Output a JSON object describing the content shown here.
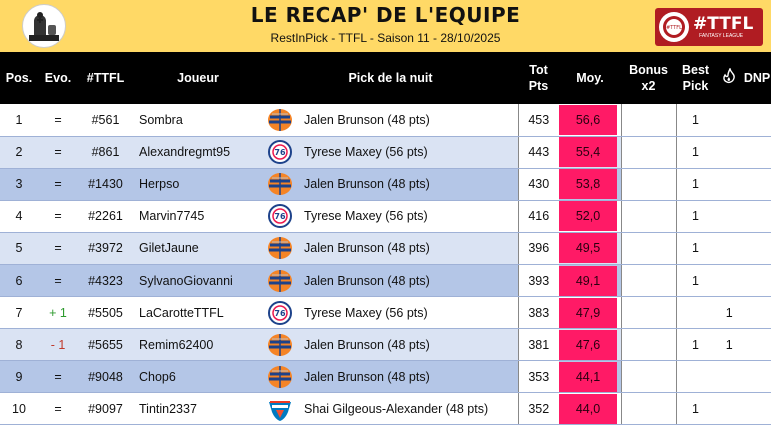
{
  "header": {
    "title": "LE RECAP' DE L'EQUIPE",
    "subtitle": "RestInPick - TTFL - Saison 11 - 28/10/2025",
    "logo_right_text": "#TTFL",
    "logo_right_sub": "FANTASY LEAGUE",
    "logo_right_badge": "#TTFL"
  },
  "columns": {
    "pos": "Pos.",
    "evo": "Evo.",
    "ttfl": "#TTFL",
    "joueur": "Joueur",
    "pick": "Pick de la nuit",
    "tot_line1": "Tot",
    "tot_line2": "Pts",
    "moy": "Moy.",
    "bonus_line1": "Bonus",
    "bonus_line2": "x2",
    "best_line1": "Best",
    "best_line2": "Pick",
    "fire_icon": "flame-icon",
    "dnp": "DNP"
  },
  "rows": [
    {
      "pos": "1",
      "evo": "=",
      "ttfl": "#561",
      "joueur": "Sombra",
      "team": "knicks",
      "pick": "Jalen Brunson (48 pts)",
      "tot": "453",
      "moy": "56,6",
      "bonus": "",
      "best": "1",
      "fire": "",
      "dnp": ""
    },
    {
      "pos": "2",
      "evo": "=",
      "ttfl": "#861",
      "joueur": "Alexandregmt95",
      "team": "sixers",
      "pick": "Tyrese Maxey (56 pts)",
      "tot": "443",
      "moy": "55,4",
      "bonus": "",
      "best": "1",
      "fire": "",
      "dnp": ""
    },
    {
      "pos": "3",
      "evo": "=",
      "ttfl": "#1430",
      "joueur": "Herpso",
      "team": "knicks",
      "pick": "Jalen Brunson (48 pts)",
      "tot": "430",
      "moy": "53,8",
      "bonus": "",
      "best": "1",
      "fire": "",
      "dnp": ""
    },
    {
      "pos": "4",
      "evo": "=",
      "ttfl": "#2261",
      "joueur": "Marvin7745",
      "team": "sixers",
      "pick": "Tyrese Maxey (56 pts)",
      "tot": "416",
      "moy": "52,0",
      "bonus": "",
      "best": "1",
      "fire": "",
      "dnp": ""
    },
    {
      "pos": "5",
      "evo": "=",
      "ttfl": "#3972",
      "joueur": "GiletJaune",
      "team": "knicks",
      "pick": "Jalen Brunson (48 pts)",
      "tot": "396",
      "moy": "49,5",
      "bonus": "",
      "best": "1",
      "fire": "",
      "dnp": ""
    },
    {
      "pos": "6",
      "evo": "=",
      "ttfl": "#4323",
      "joueur": "SylvanoGiovanni",
      "team": "knicks",
      "pick": "Jalen Brunson (48 pts)",
      "tot": "393",
      "moy": "49,1",
      "bonus": "",
      "best": "1",
      "fire": "",
      "dnp": ""
    },
    {
      "pos": "7",
      "evo": "+ 1",
      "evo_dir": "up",
      "ttfl": "#5505",
      "joueur": "LaCarotteTTFL",
      "team": "sixers",
      "pick": "Tyrese Maxey (56 pts)",
      "tot": "383",
      "moy": "47,9",
      "bonus": "",
      "best": "",
      "fire": "1",
      "dnp": ""
    },
    {
      "pos": "8",
      "evo": "- 1",
      "evo_dir": "down",
      "ttfl": "#5655",
      "joueur": "Remim62400",
      "team": "knicks",
      "pick": "Jalen Brunson (48 pts)",
      "tot": "381",
      "moy": "47,6",
      "bonus": "",
      "best": "1",
      "fire": "1",
      "dnp": ""
    },
    {
      "pos": "9",
      "evo": "=",
      "ttfl": "#9048",
      "joueur": "Chop6",
      "team": "knicks",
      "pick": "Jalen Brunson (48 pts)",
      "tot": "353",
      "moy": "44,1",
      "bonus": "",
      "best": "",
      "fire": "",
      "dnp": ""
    },
    {
      "pos": "10",
      "evo": "=",
      "ttfl": "#9097",
      "joueur": "Tintin2337",
      "team": "thunder",
      "pick": "Shai Gilgeous-Alexander (48 pts)",
      "tot": "352",
      "moy": "44,0",
      "bonus": "",
      "best": "1",
      "fire": "",
      "dnp": ""
    }
  ],
  "colors": {
    "header_bg": "#ffd966",
    "moy_bg": "#ff1a66",
    "row_white": "#ffffff",
    "row_light": "#dae3f3",
    "row_dark": "#b4c6e7"
  }
}
